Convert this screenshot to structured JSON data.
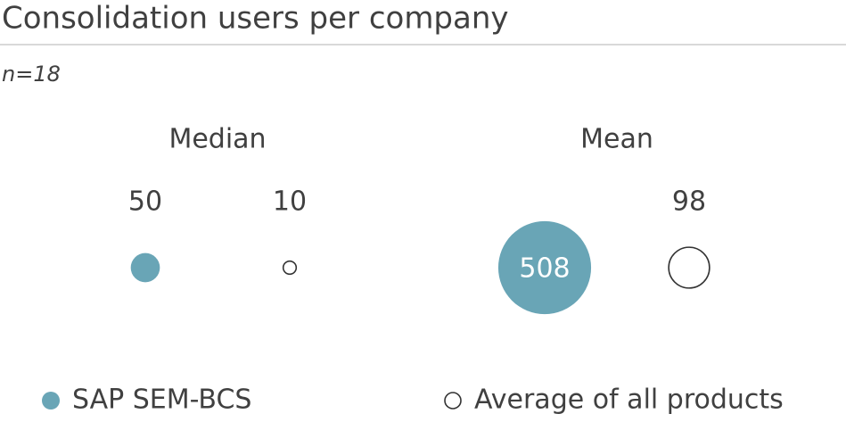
{
  "chart_data": {
    "type": "bubble",
    "title": "Consolidation users per company",
    "subtitle": "n=18",
    "categories": [
      "Median",
      "Mean"
    ],
    "series": [
      {
        "name": "SAP SEM-BCS",
        "color": "#69a5b6",
        "filled": true,
        "values": [
          50,
          508
        ]
      },
      {
        "name": "Average of all products",
        "color": "#333333",
        "filled": false,
        "values": [
          10,
          98
        ]
      }
    ]
  }
}
